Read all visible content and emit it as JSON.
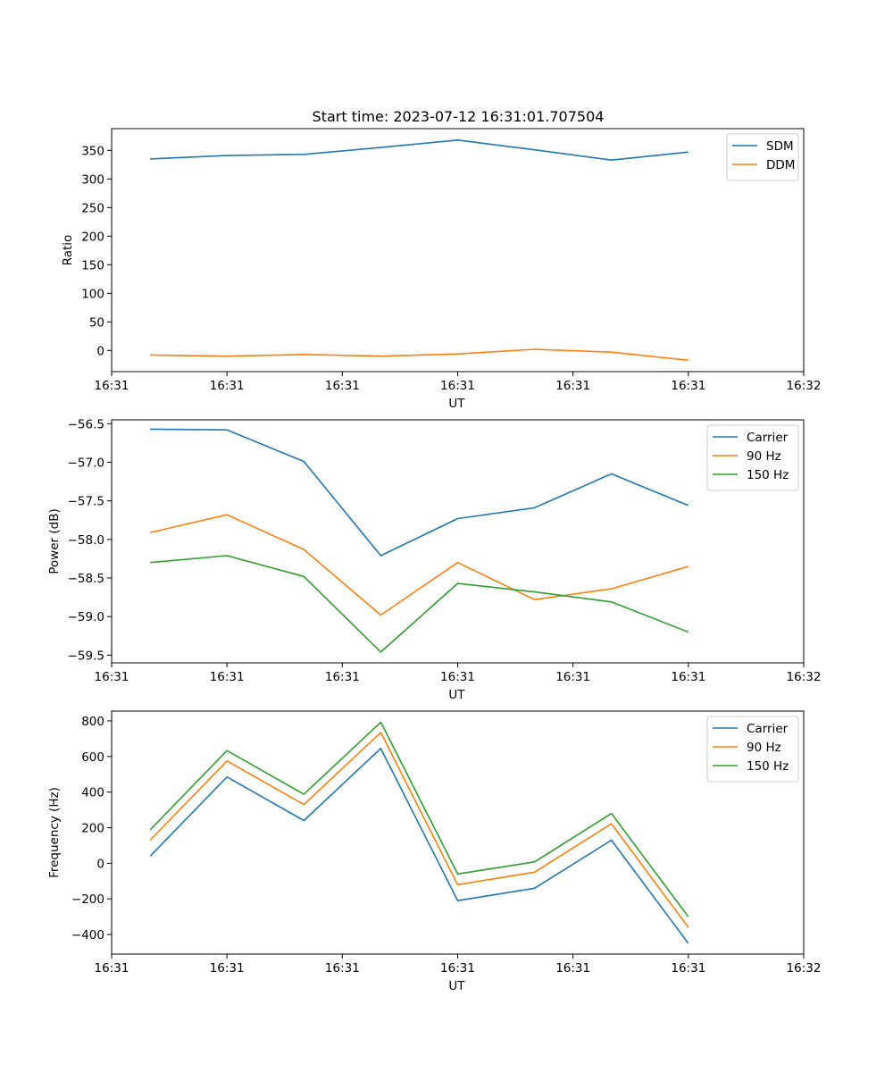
{
  "figure_title": "Start time: 2023-07-12 16:31:01.707504",
  "colors": {
    "blue": "#1f77b4",
    "orange": "#ff7f0e",
    "green": "#2ca02c",
    "axis": "#000000",
    "legend_border": "#cccccc"
  },
  "chart_data": [
    {
      "type": "line",
      "title": "Start time: 2023-07-12 16:31:01.707504",
      "xlabel": "UT",
      "ylabel": "Ratio",
      "x": [
        1,
        2,
        3,
        4,
        5,
        6,
        7,
        8
      ],
      "xlim": [
        0.5,
        9.5
      ],
      "ylim": [
        -37,
        388
      ],
      "xticks": [
        0.5,
        2,
        3.5,
        5,
        6.5,
        8,
        9.5
      ],
      "xtick_labels": [
        "16:31",
        "16:31",
        "16:31",
        "16:31",
        "16:31",
        "16:31",
        "16:32"
      ],
      "yticks": [
        0,
        50,
        100,
        150,
        200,
        250,
        300,
        350
      ],
      "ytick_labels": [
        "0",
        "50",
        "100",
        "150",
        "200",
        "250",
        "300",
        "350"
      ],
      "legend_position": "upper right",
      "series": [
        {
          "name": "SDM",
          "color_key": "blue",
          "values": [
            335,
            341,
            343,
            355,
            368,
            351,
            333,
            347
          ]
        },
        {
          "name": "DDM",
          "color_key": "orange",
          "values": [
            -8,
            -10,
            -7,
            -10,
            -6,
            2,
            -3,
            -17
          ]
        }
      ]
    },
    {
      "type": "line",
      "title": "",
      "xlabel": "UT",
      "ylabel": "Power (dB)",
      "x": [
        1,
        2,
        3,
        4,
        5,
        6,
        7,
        8
      ],
      "xlim": [
        0.5,
        9.5
      ],
      "ylim": [
        -59.6,
        -56.45
      ],
      "xticks": [
        0.5,
        2,
        3.5,
        5,
        6.5,
        8,
        9.5
      ],
      "xtick_labels": [
        "16:31",
        "16:31",
        "16:31",
        "16:31",
        "16:31",
        "16:31",
        "16:32"
      ],
      "yticks": [
        -59.5,
        -59.0,
        -58.5,
        -58.0,
        -57.5,
        -57.0,
        -56.5
      ],
      "ytick_labels": [
        "−59.5",
        "−59.0",
        "−58.5",
        "−58.0",
        "−57.5",
        "−57.0",
        "−56.5"
      ],
      "legend_position": "upper right",
      "series": [
        {
          "name": "Carrier",
          "color_key": "blue",
          "values": [
            -56.57,
            -56.58,
            -56.99,
            -58.21,
            -57.73,
            -57.59,
            -57.15,
            -57.56
          ]
        },
        {
          "name": "90 Hz",
          "color_key": "orange",
          "values": [
            -57.91,
            -57.68,
            -58.13,
            -58.98,
            -58.3,
            -58.78,
            -58.64,
            -58.35
          ]
        },
        {
          "name": "150 Hz",
          "color_key": "green",
          "values": [
            -58.3,
            -58.21,
            -58.48,
            -59.46,
            -58.57,
            -58.68,
            -58.81,
            -59.2
          ]
        }
      ]
    },
    {
      "type": "line",
      "title": "",
      "xlabel": "UT",
      "ylabel": "Frequency (Hz)",
      "x": [
        1,
        2,
        3,
        4,
        5,
        6,
        7,
        8
      ],
      "xlim": [
        0.5,
        9.5
      ],
      "ylim": [
        -510,
        855
      ],
      "xticks": [
        0.5,
        2,
        3.5,
        5,
        6.5,
        8,
        9.5
      ],
      "xtick_labels": [
        "16:31",
        "16:31",
        "16:31",
        "16:31",
        "16:31",
        "16:31",
        "16:32"
      ],
      "yticks": [
        -400,
        -200,
        0,
        200,
        400,
        600,
        800
      ],
      "ytick_labels": [
        "−400",
        "−200",
        "0",
        "200",
        "400",
        "600",
        "800"
      ],
      "legend_position": "upper right",
      "series": [
        {
          "name": "Carrier",
          "color_key": "blue",
          "values": [
            40,
            485,
            240,
            645,
            -210,
            -140,
            130,
            -450
          ]
        },
        {
          "name": "90 Hz",
          "color_key": "orange",
          "values": [
            130,
            575,
            330,
            735,
            -120,
            -50,
            222,
            -360
          ]
        },
        {
          "name": "150 Hz",
          "color_key": "green",
          "values": [
            188,
            633,
            388,
            793,
            -60,
            8,
            280,
            -300
          ]
        }
      ]
    }
  ]
}
